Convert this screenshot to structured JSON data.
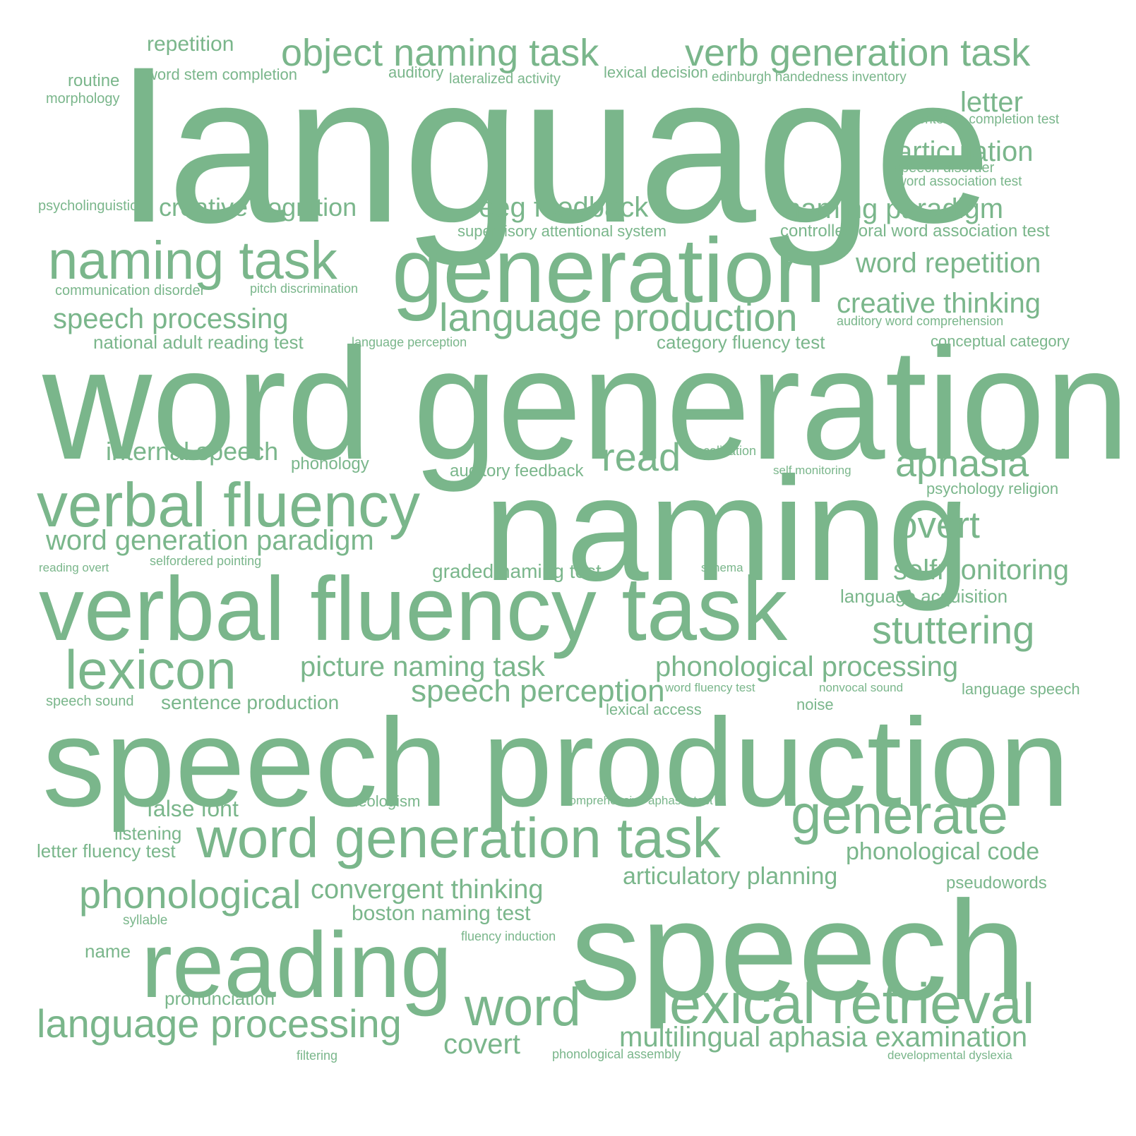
{
  "color": "#7ab68b",
  "words": [
    "language",
    "word generation",
    "speech production",
    "naming",
    "speech",
    "generation",
    "verbal fluency task",
    "reading",
    "lexical retrieval",
    "verbal fluency",
    "word generation task",
    "naming task",
    "word",
    "lexicon",
    "generate",
    "language production",
    "object naming task",
    "verb generation task",
    "phonological",
    "aphasia",
    "language processing",
    "stuttering",
    "read",
    "overt",
    "speech perception",
    "creative cognition",
    "eeg feedback",
    "naming paradigm",
    "word repetition",
    "creative thinking",
    "articulation",
    "letter",
    "speech processing",
    "internal speech",
    "word generation paradigm",
    "selfmonitoring",
    "picture naming task",
    "phonological processing",
    "multilingual aphasia examination",
    "covert",
    "convergent thinking",
    "articulatory planning",
    "phonological code",
    "false font",
    "repetition",
    "graded naming test",
    "boston naming test",
    "sentence production",
    "national adult reading test",
    "category fluency test",
    "language acquisition",
    "pronunciation",
    "controlled oral word association test",
    "supervisory attentional system",
    "listening",
    "letter fluency test",
    "auditory feedback",
    "phonology",
    "conceptual category",
    "psychology religion",
    "word stem completion",
    "routine",
    "lexical decision",
    "lexical access",
    "name",
    "neologism",
    "noise",
    "pseudowords",
    "language speech",
    "morphology",
    "psycholinguistic",
    "auditory",
    "lateralized activity",
    "edinburgh handedness inventory",
    "sentence completion test",
    "speech disorder",
    "word association test",
    "communication disorder",
    "pitch discrimination",
    "auditory word comprehension",
    "language perception",
    "localization",
    "self monitoring",
    "reading overt",
    "selfordered pointing",
    "schema",
    "speech sound",
    "word fluency test",
    "nonvocal sound",
    "comprehensive aphasia test",
    "syllable",
    "fluency induction",
    "filtering",
    "phonological assembly",
    "developmental dyslexia"
  ]
}
